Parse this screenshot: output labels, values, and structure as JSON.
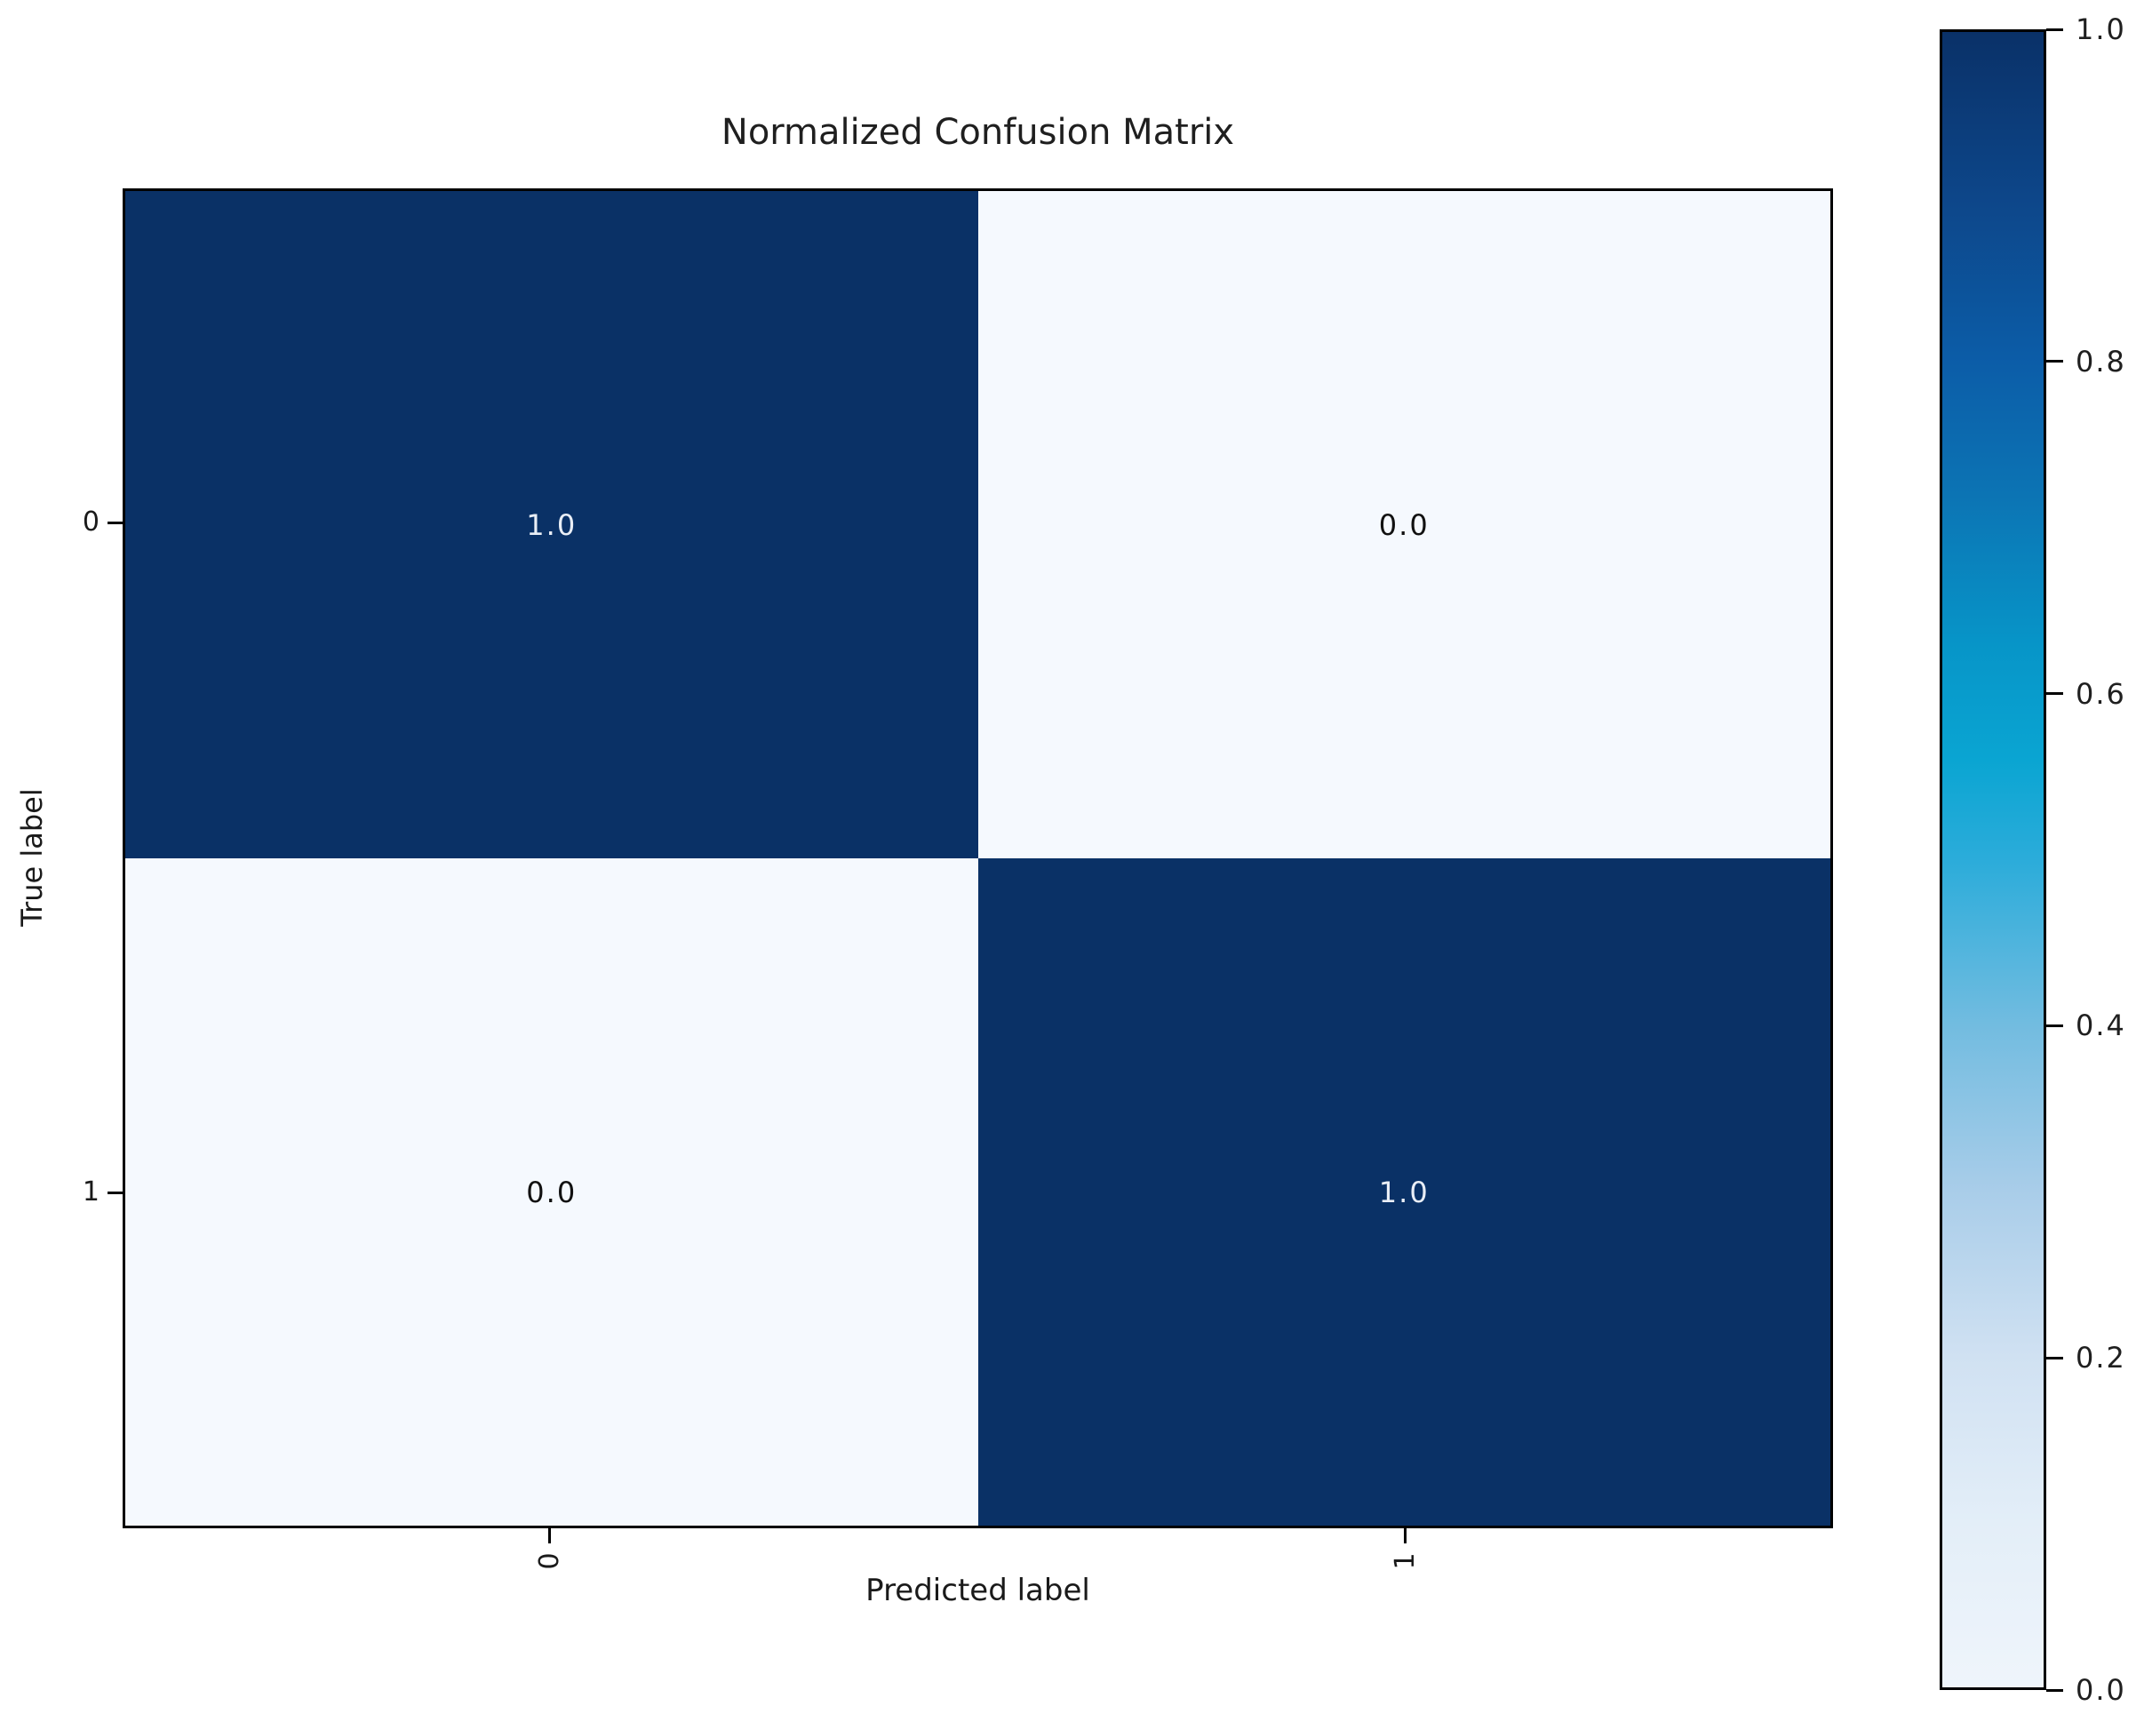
{
  "figure": {
    "background": "#ffffff",
    "axes_border_color": "#000000"
  },
  "chart_data": {
    "type": "heatmap",
    "title": "Normalized Confusion Matrix",
    "xlabel": "Predicted label",
    "ylabel": "True label",
    "x_tick_labels": [
      "0",
      "1"
    ],
    "y_tick_labels": [
      "0",
      "1"
    ],
    "matrix": [
      [
        1.0,
        0.0
      ],
      [
        0.0,
        1.0
      ]
    ],
    "cells": [
      {
        "row": 0,
        "col": 0,
        "value": 1.0,
        "label": "1.0",
        "bg": "#0a3166",
        "text_color": "#e9eef6"
      },
      {
        "row": 0,
        "col": 1,
        "value": 0.0,
        "label": "0.0",
        "bg": "#f5f9fe",
        "text_color": "#111111"
      },
      {
        "row": 1,
        "col": 0,
        "value": 0.0,
        "label": "0.0",
        "bg": "#f5f9fe",
        "text_color": "#111111"
      },
      {
        "row": 1,
        "col": 1,
        "value": 1.0,
        "label": "1.0",
        "bg": "#0a3166",
        "text_color": "#e9eef6"
      }
    ],
    "colormap": "Blues",
    "vmin": 0.0,
    "vmax": 1.0,
    "grid": false,
    "legend": false,
    "colorbar": {
      "position": "right",
      "ticks": [
        {
          "label": "1.0",
          "pos": 1.0
        },
        {
          "label": "0.8",
          "pos": 0.8
        },
        {
          "label": "0.6",
          "pos": 0.6
        },
        {
          "label": "0.4",
          "pos": 0.4
        },
        {
          "label": "0.2",
          "pos": 0.2
        },
        {
          "label": "0.0",
          "pos": 0.0
        }
      ],
      "gradient": [
        {
          "pos": 0.0,
          "color": "#eff5fb"
        },
        {
          "pos": 0.1,
          "color": "#e3eef8"
        },
        {
          "pos": 0.2,
          "color": "#d0e1f2"
        },
        {
          "pos": 0.3,
          "color": "#a9cde9"
        },
        {
          "pos": 0.4,
          "color": "#72bce0"
        },
        {
          "pos": 0.5,
          "color": "#2bacda"
        },
        {
          "pos": 0.56,
          "color": "#0aa5d2"
        },
        {
          "pos": 0.63,
          "color": "#0795c8"
        },
        {
          "pos": 0.72,
          "color": "#0c74b4"
        },
        {
          "pos": 0.8,
          "color": "#0c5da8"
        },
        {
          "pos": 0.9,
          "color": "#0d4689"
        },
        {
          "pos": 1.0,
          "color": "#0a3168"
        }
      ]
    }
  }
}
